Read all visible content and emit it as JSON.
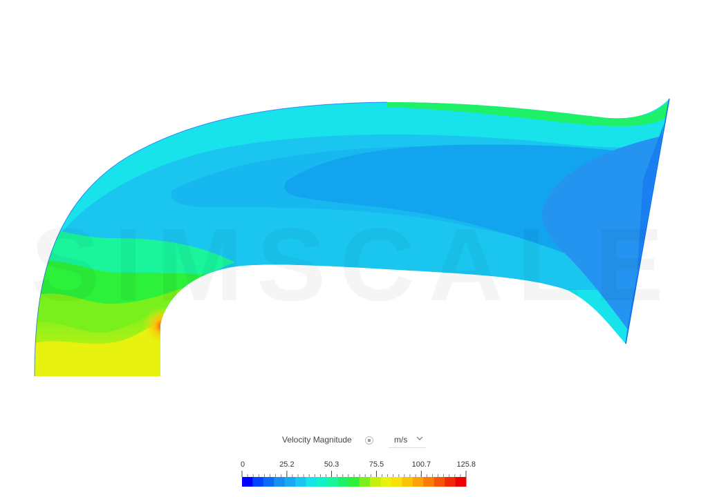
{
  "legend": {
    "title": "Velocity Magnitude",
    "info_icon": "info-icon",
    "unit": "m/s",
    "unit_dropdown_icon": "chevron-down-icon",
    "tick_labels": [
      "0",
      "25.2",
      "50.3",
      "75.5",
      "100.7",
      "125.8"
    ],
    "range": [
      0,
      125.8
    ],
    "colors": [
      "#0000ff",
      "#0044ff",
      "#0a6cf4",
      "#178ff0",
      "#1aa8f0",
      "#1ac6ef",
      "#19e3ea",
      "#12f2c6",
      "#1af59c",
      "#1ef06a",
      "#2cf03a",
      "#79f01c",
      "#c7f00f",
      "#e8f20f",
      "#f8e00c",
      "#fbc20a",
      "#fba20a",
      "#fb7d08",
      "#f75608",
      "#f12a06",
      "#ee0000"
    ]
  },
  "field": {
    "description_colors": {
      "outlet_core": "#2594f0",
      "main_body": "#1ac6ef",
      "inner_wall": "#1ef06a",
      "inlet": "#e8f20f",
      "hotspot": "#fba20a"
    }
  }
}
